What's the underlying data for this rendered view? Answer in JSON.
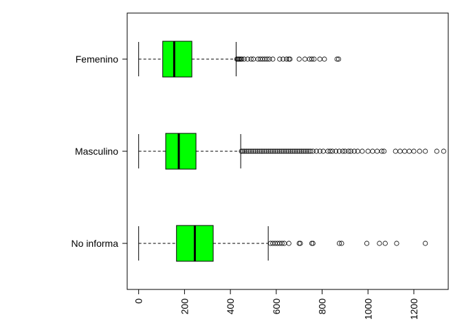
{
  "chart_data": {
    "type": "boxplot",
    "orientation": "horizontal",
    "title": "",
    "xlabel": "",
    "ylabel": "",
    "xlim": [
      -50,
      1350
    ],
    "xticks": [
      0,
      200,
      400,
      600,
      800,
      1000,
      1200
    ],
    "xtick_labels": [
      "0",
      "200",
      "400",
      "600",
      "800",
      "1000",
      "1200"
    ],
    "box_color": "#00ff00",
    "categories": [
      "No informa",
      "Masculino",
      "Femenino"
    ],
    "boxes": [
      {
        "label": "No informa",
        "whisker_low": 0,
        "q1": 165,
        "median": 245,
        "q3": 325,
        "whisker_high": 565,
        "outliers": [
          575,
          585,
          595,
          605,
          615,
          625,
          635,
          655,
          700,
          705,
          755,
          760,
          875,
          885,
          995,
          1050,
          1075,
          1125,
          1250
        ]
      },
      {
        "label": "Masculino",
        "whisker_low": 0,
        "q1": 118,
        "median": 175,
        "q3": 250,
        "whisker_high": 445,
        "outliers": [
          448,
          455,
          462,
          470,
          478,
          486,
          494,
          502,
          510,
          518,
          526,
          534,
          542,
          550,
          558,
          566,
          574,
          582,
          590,
          598,
          606,
          614,
          622,
          630,
          638,
          646,
          654,
          662,
          670,
          678,
          686,
          694,
          702,
          710,
          718,
          726,
          734,
          742,
          750,
          760,
          775,
          790,
          805,
          825,
          835,
          845,
          860,
          875,
          890,
          900,
          915,
          925,
          940,
          955,
          975,
          1000,
          1020,
          1040,
          1060,
          1070,
          1120,
          1140,
          1160,
          1180,
          1200,
          1225,
          1250,
          1300,
          1330
        ]
      },
      {
        "label": "Femenino",
        "whisker_low": 0,
        "q1": 105,
        "median": 155,
        "q3": 232,
        "whisker_high": 425,
        "outliers": [
          428,
          432,
          436,
          440,
          445,
          450,
          460,
          475,
          490,
          500,
          520,
          530,
          540,
          550,
          560,
          570,
          585,
          615,
          630,
          645,
          655,
          660,
          700,
          725,
          745,
          755,
          765,
          790,
          810,
          865,
          872
        ]
      }
    ]
  }
}
